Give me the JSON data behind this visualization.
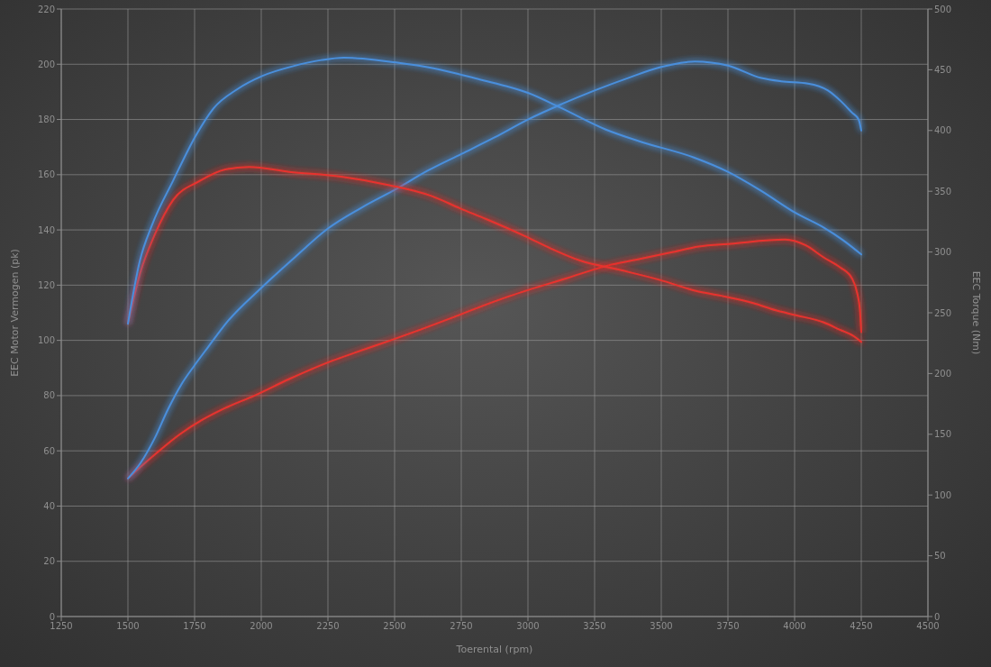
{
  "chart_data": {
    "type": "line",
    "xlabel": "Toerental (rpm)",
    "ylabel": "EEC Motor Vermogen (pk)",
    "y2label": "EEC Torque (Nm)",
    "xlim": [
      1250,
      4500
    ],
    "xticks": [
      1250,
      1500,
      1750,
      2000,
      2250,
      2500,
      2750,
      3000,
      3250,
      3500,
      3750,
      4000,
      4250,
      4500
    ],
    "ylim": [
      0,
      220
    ],
    "yticks": [
      0,
      20,
      40,
      60,
      80,
      100,
      120,
      140,
      160,
      180,
      200,
      220
    ],
    "y2lim": [
      0,
      500
    ],
    "y2ticks": [
      0,
      50,
      100,
      150,
      200,
      250,
      300,
      350,
      400,
      450,
      500
    ],
    "grid": true,
    "series": [
      {
        "color": "#e8332f",
        "x": [
          1500,
          1545,
          1605,
          1695,
          1775,
          1865,
          1975,
          2105,
          2250,
          2350,
          2485,
          2600,
          2710,
          2830,
          2930,
          3145,
          3315,
          3420,
          3545,
          3640,
          3760,
          3965,
          4040,
          4110,
          4170,
          4215,
          4235,
          4245,
          4250
        ],
        "values": [
          50,
          54,
          59,
          66,
          71,
          75.5,
          80,
          86,
          92,
          95.5,
          100,
          104,
          108,
          112.5,
          116,
          122.5,
          127.5,
          129.5,
          132,
          134,
          135,
          136.5,
          134.5,
          130,
          126.5,
          122.5,
          117,
          111,
          103
        ]
      },
      {
        "color": "#4a8fdc",
        "x": [
          1500,
          1550,
          1600,
          1650,
          1700,
          1750,
          1800,
          1875,
          2000,
          2125,
          2250,
          2375,
          2500,
          2625,
          2750,
          2875,
          3000,
          3125,
          3250,
          3375,
          3500,
          3625,
          3750,
          3875,
          3950,
          4050,
          4125,
          4175,
          4215,
          4240,
          4250
        ],
        "values": [
          50,
          56,
          64.5,
          75,
          84,
          91,
          97.5,
          107,
          119,
          130,
          140.5,
          148,
          154.5,
          161.5,
          167.5,
          173.5,
          180,
          185.5,
          190.5,
          195,
          199,
          201,
          199.5,
          195,
          193.8,
          193,
          190.5,
          186.5,
          182.5,
          180,
          176
        ]
      },
      {
        "color": "#e8332f",
        "axis": "y2",
        "x": [
          1500,
          1545,
          1600,
          1670,
          1765,
          1865,
          1955,
          2105,
          2300,
          2480,
          2640,
          2745,
          2845,
          2990,
          3085,
          3195,
          3350,
          3495,
          3630,
          3725,
          3845,
          3930,
          4005,
          4110,
          4170,
          4220,
          4250
        ],
        "values": [
          241,
          282,
          314,
          343,
          358,
          368,
          370,
          366,
          362,
          355,
          346,
          336,
          327,
          313,
          303,
          293,
          285,
          277,
          268,
          264,
          258,
          252,
          248,
          242,
          236,
          231,
          226
        ]
      },
      {
        "color": "#4a8fdc",
        "axis": "y2",
        "x": [
          1500,
          1545,
          1590,
          1670,
          1755,
          1820,
          1910,
          2005,
          2120,
          2225,
          2310,
          2505,
          2650,
          2820,
          2910,
          3000,
          3120,
          3290,
          3420,
          3620,
          3750,
          3870,
          4005,
          4110,
          4180,
          4250
        ],
        "values": [
          241,
          293,
          322,
          359,
          396,
          418,
          434,
          445,
          453,
          458,
          460,
          456,
          451,
          442,
          437,
          431,
          419,
          401,
          391,
          378,
          366,
          351,
          332,
          320,
          310,
          298
        ]
      }
    ]
  }
}
